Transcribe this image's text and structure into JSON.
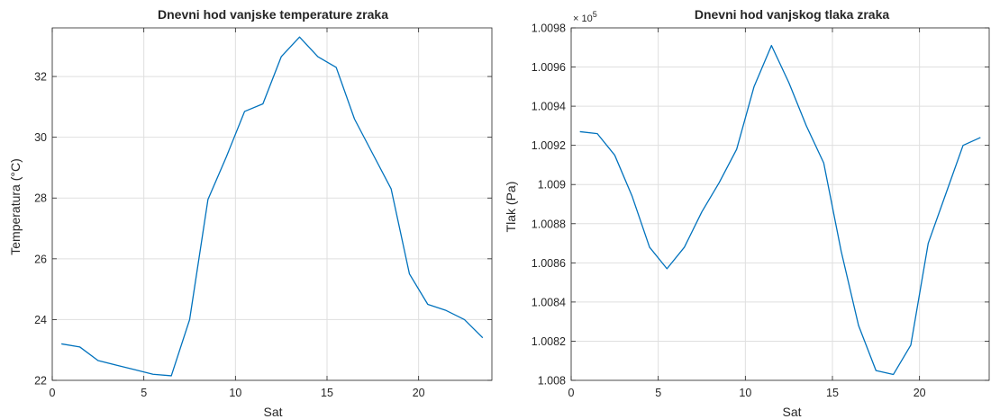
{
  "figure": {
    "colors": {
      "line": "#0072BD",
      "grid": "#dfdfdf",
      "axis": "#262626",
      "background": "#ffffff"
    }
  },
  "chart_data": [
    {
      "type": "line",
      "title": "Dnevni hod vanjske temperature zraka",
      "xlabel": "Sat",
      "ylabel": "Temperatura (°C)",
      "xlim": [
        0,
        24
      ],
      "ylim": [
        22,
        33.6
      ],
      "grid": true,
      "x_ticks": [
        0,
        5,
        10,
        15,
        20
      ],
      "x_tick_labels": [
        "0",
        "5",
        "10",
        "15",
        "20"
      ],
      "y_ticks": [
        22,
        24,
        26,
        28,
        30,
        32
      ],
      "y_tick_labels": [
        "22",
        "24",
        "26",
        "28",
        "30",
        "32"
      ],
      "series": [
        {
          "x": [
            0.5,
            1.5,
            2.5,
            3.5,
            4.5,
            5.5,
            6.5,
            7.5,
            8.5,
            9.5,
            10.5,
            11.5,
            12.5,
            13.5,
            14.5,
            15.5,
            16.5,
            17.5,
            18.5,
            19.5,
            20.5,
            21.5,
            22.5,
            23.5
          ],
          "values": [
            23.2,
            23.1,
            22.65,
            22.5,
            22.35,
            22.2,
            22.15,
            24.0,
            27.95,
            29.35,
            30.85,
            31.1,
            32.65,
            33.3,
            32.65,
            32.3,
            30.6,
            29.45,
            28.3,
            25.5,
            24.5,
            24.3,
            24.0,
            23.4
          ]
        }
      ]
    },
    {
      "type": "line",
      "title": "Dnevni hod vanjskog tlaka zraka",
      "xlabel": "Sat",
      "ylabel": "Tlak (Pa)",
      "exponent_label": "× 10",
      "exponent_power": "5",
      "xlim": [
        0,
        24
      ],
      "ylim": [
        100800,
        100980
      ],
      "grid": true,
      "x_ticks": [
        0,
        5,
        10,
        15,
        20
      ],
      "x_tick_labels": [
        "0",
        "5",
        "10",
        "15",
        "20"
      ],
      "y_ticks": [
        100800,
        100820,
        100840,
        100860,
        100880,
        100900,
        100920,
        100940,
        100960,
        100980
      ],
      "y_tick_labels": [
        "1.008",
        "1.0082",
        "1.0084",
        "1.0086",
        "1.0088",
        "1.009",
        "1.0092",
        "1.0094",
        "1.0096",
        "1.0098"
      ],
      "series": [
        {
          "x": [
            0.5,
            1.5,
            2.5,
            3.5,
            4.5,
            5.5,
            6.5,
            7.5,
            8.5,
            9.5,
            10.5,
            11.5,
            12.5,
            13.5,
            14.5,
            15.5,
            16.5,
            17.5,
            18.5,
            19.5,
            20.5,
            21.5,
            22.5,
            23.5
          ],
          "values": [
            100927,
            100926,
            100915,
            100894,
            100868,
            100857,
            100868,
            100886,
            100901,
            100918,
            100950,
            100971,
            100952,
            100930,
            100911,
            100866,
            100828,
            100805,
            100803,
            100818,
            100870,
            100895,
            100920,
            100924
          ]
        }
      ]
    }
  ]
}
